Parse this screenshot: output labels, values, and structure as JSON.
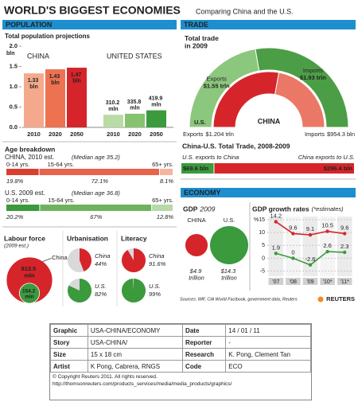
{
  "header": {
    "title": "WORLD'S BIGGEST ECONOMIES",
    "subtitle": "Comparing China and the U.S."
  },
  "sections": [
    "POPULATION",
    "TRADE",
    "ECONOMY"
  ],
  "chart_data": [
    {
      "type": "bar",
      "title": "Total population projections",
      "y_label": "bln",
      "ylim": [
        0,
        2
      ],
      "yticks": [
        {
          "value": 0,
          "label": "0.0"
        },
        0.5,
        {
          "value": 1,
          "label": "1.0"
        },
        1.5,
        {
          "value": 2,
          "label": "2.0"
        }
      ],
      "series": [
        {
          "name": "CHINA",
          "categories": [
            "2010",
            "2020",
            "2050"
          ],
          "values": [
            1.33,
            1.43,
            1.47
          ],
          "value_labels": [
            "1.33 bln",
            "1.43 bln",
            "1.47 bln"
          ],
          "colors": [
            "#f4a98c",
            "#ec7251",
            "#d6252a"
          ]
        },
        {
          "name": "UNITED STATES",
          "categories": [
            "2010",
            "2020",
            "2050"
          ],
          "values": [
            0.3102,
            0.3358,
            0.4199
          ],
          "value_labels": [
            "310.2 mln",
            "335.8 mln",
            "419.9 mln"
          ],
          "colors": [
            "#b9dba6",
            "#86c26f",
            "#3a9a3c"
          ]
        }
      ]
    },
    {
      "type": "stacked-bar-h",
      "title": "Age breakdown",
      "xlim": [
        0,
        100
      ],
      "categories": [
        "0-14 yrs.",
        "15-64 yrs.",
        "65+ yrs."
      ],
      "rows": [
        {
          "name": "CHINA, 2010 est.",
          "note": "(Median age 35.2)",
          "values": [
            19.8,
            72.1,
            8.1
          ],
          "value_labels": [
            "19.8%",
            "72.1%",
            "8.1%"
          ],
          "colors": [
            "#d9412f",
            "#e8634a",
            "#f4b59e"
          ]
        },
        {
          "name": "U.S. 2009 est.",
          "note": "(Median age 36.8)",
          "values": [
            20.2,
            67,
            12.8
          ],
          "value_labels": [
            "20.2%",
            "67%",
            "12.8%"
          ],
          "colors": [
            "#3a9a3c",
            "#6db35d",
            "#b6d9a5"
          ]
        }
      ]
    },
    {
      "type": "nested-circles",
      "title": "Labour force",
      "subtitle": "(2009 est.)",
      "categories": [
        "China",
        null
      ],
      "values": [
        813.5,
        154.2
      ],
      "value_labels": [
        "813.5 mln",
        "154.2 mln"
      ],
      "colors": [
        "#d6252a",
        "#3a9a3c"
      ]
    },
    {
      "type": "pie-pair",
      "title": "Urbanisation",
      "ylim": [
        0,
        100
      ],
      "categories": [
        "China",
        "U.S."
      ],
      "values": [
        44,
        82
      ],
      "value_labels": [
        "44%",
        "82%"
      ],
      "colors": [
        "#d6252a",
        "#3a9a3c"
      ]
    },
    {
      "type": "pie-pair",
      "title": "Literacy",
      "ylim": [
        0,
        100
      ],
      "categories": [
        "China",
        "U.S."
      ],
      "values": [
        91.6,
        99
      ],
      "value_labels": [
        "91.6%",
        "99%"
      ],
      "colors": [
        "#d6252a",
        "#3a9a3c"
      ]
    },
    {
      "type": "half-donut",
      "title": "Total trade in 2009",
      "rings": [
        {
          "name": "U.S.",
          "categories": [
            "Exports",
            "Imports"
          ],
          "values": [
            1.55,
            1.93
          ],
          "value_labels": [
            "$1.55 trln",
            "$1.93 trln"
          ],
          "colors": [
            "#8cc77e",
            "#4c9e46"
          ]
        },
        {
          "name": "CHINA",
          "categories": [
            "Exports",
            "Imports"
          ],
          "values": [
            1.204,
            0.9543
          ],
          "value_labels": [
            "$1.204 trln",
            "$954.3 bln"
          ],
          "colors": [
            "#d6252a",
            "#eb7766"
          ]
        }
      ]
    },
    {
      "type": "split-bar",
      "title": "China-U.S. Total Trade, 2008-2009",
      "categories": [
        "U.S. exports to China",
        "China exports to U.S."
      ],
      "values": [
        69.6,
        296.4
      ],
      "value_labels": [
        "$69.6 bln",
        "$296.4 bln"
      ],
      "colors": [
        "#3a9a3c",
        "#d6252a"
      ]
    },
    {
      "type": "bubble-pair",
      "title": "GDP",
      "title_note": "2009",
      "categories": [
        "CHINA",
        "U.S."
      ],
      "values": [
        4.9,
        14.3
      ],
      "value_labels": [
        "$4.9 trillion",
        "$14.3 trillion"
      ],
      "colors": [
        "#d6252a",
        "#3a9a3c"
      ]
    },
    {
      "type": "line",
      "title": "GDP growth rates",
      "subtitle": "(*estimates)",
      "categories": [
        "'07",
        "'08",
        "'09",
        "'10*",
        "'11*"
      ],
      "ylim": [
        -7,
        15
      ],
      "yticks": [
        -5,
        0,
        5,
        10,
        {
          "value": 15,
          "label": "%15"
        }
      ],
      "grid": true,
      "series": [
        {
          "color": "#d6252a",
          "values": [
            14.2,
            9.6,
            9.1,
            10.5,
            9.6
          ]
        },
        {
          "color": "#3a9a3c",
          "values": [
            1.9,
            0,
            -2.6,
            2.6,
            2.3
          ]
        }
      ]
    }
  ],
  "source": "Sources: IMF, CIA World Factbook, government data, Reuters",
  "logo": "REUTERS",
  "footer": {
    "rows": [
      [
        "Graphic",
        "USA-CHINA/ECONOMY",
        "Date",
        "14 / 01 / 11"
      ],
      [
        "Story",
        "USA-CHINA/",
        "Reporter",
        "-"
      ],
      [
        "Size",
        "15 x 18 cm",
        "Research",
        "K. Pong, Clement Tan"
      ],
      [
        "Artist",
        "K Pong, Cabrera, RNGS",
        "Code",
        "ECO"
      ]
    ],
    "copyright": "© Copyright Reuters 2011. All rights reserved.",
    "url": "http://thomsonreuters.com/products_services/media/media_products/graphics/"
  }
}
